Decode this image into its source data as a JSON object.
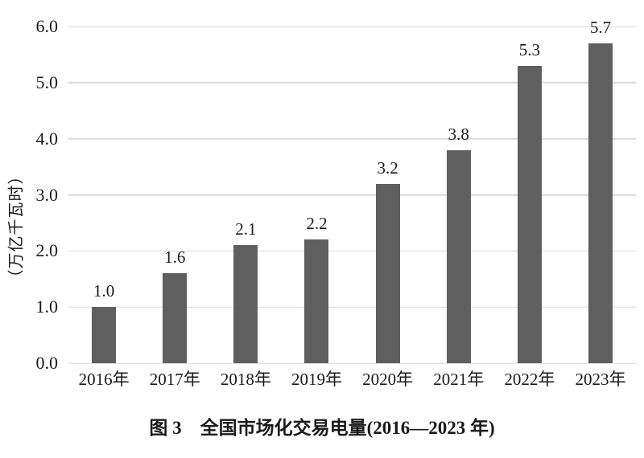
{
  "chart_data": {
    "type": "bar",
    "categories": [
      "2016年",
      "2017年",
      "2018年",
      "2019年",
      "2020年",
      "2021年",
      "2022年",
      "2023年"
    ],
    "values": [
      1.0,
      1.6,
      2.1,
      2.2,
      3.2,
      3.8,
      5.3,
      5.7
    ],
    "bar_labels": [
      "1.0",
      "1.6",
      "2.1",
      "2.2",
      "3.2",
      "3.8",
      "5.3",
      "5.7"
    ],
    "title": "图 3　全国市场化交易电量(2016—2023 年)",
    "xlabel": "",
    "ylabel": "（万亿千瓦时）",
    "ylim": [
      0,
      6
    ],
    "yticks": [
      "0.0",
      "1.0",
      "2.0",
      "3.0",
      "4.0",
      "5.0",
      "6.0"
    ],
    "grid": true,
    "legend": "none"
  },
  "caption": "图 3　全国市场化交易电量(2016—2023 年)",
  "colors": {
    "bar": "#5f5f5f",
    "gridline": "#d9d9d9",
    "text": "#1a1a1a",
    "background": "#ffffff"
  }
}
